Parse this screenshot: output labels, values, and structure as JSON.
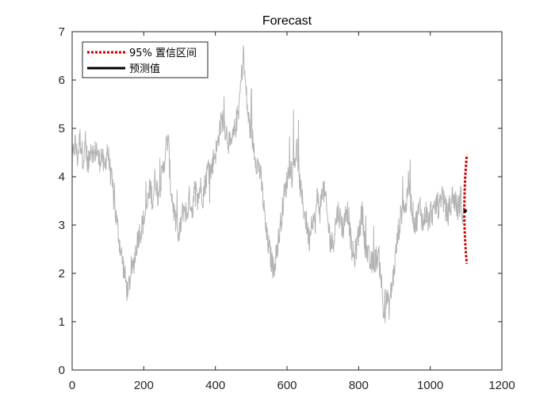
{
  "chart_data": {
    "type": "line",
    "title": "Forecast",
    "xlabel": "",
    "ylabel": "",
    "xlim": [
      0,
      1200
    ],
    "ylim": [
      0,
      7
    ],
    "xticks": [
      0,
      200,
      400,
      600,
      800,
      1000,
      1200
    ],
    "yticks": [
      0,
      1,
      2,
      3,
      4,
      5,
      6,
      7
    ],
    "grid": false,
    "legend": {
      "placement": "top-left",
      "entries": [
        {
          "label": "95% 置信区间",
          "color": "#cc0000",
          "style": "dotted"
        },
        {
          "label": "预测值",
          "color": "#000000",
          "style": "solid"
        }
      ]
    },
    "series": [
      {
        "role": "observed",
        "color": "#b3b3b3",
        "points": [
          [
            0,
            4.3
          ],
          [
            8,
            4.7
          ],
          [
            15,
            4.4
          ],
          [
            22,
            4.8
          ],
          [
            30,
            4.4
          ],
          [
            38,
            4.6
          ],
          [
            45,
            4.2
          ],
          [
            52,
            4.7
          ],
          [
            60,
            4.4
          ],
          [
            68,
            4.6
          ],
          [
            75,
            4.3
          ],
          [
            82,
            4.5
          ],
          [
            90,
            4.1
          ],
          [
            98,
            4.6
          ],
          [
            105,
            4.2
          ],
          [
            112,
            3.8
          ],
          [
            120,
            3.3
          ],
          [
            128,
            2.9
          ],
          [
            135,
            2.5
          ],
          [
            142,
            2.2
          ],
          [
            150,
            1.8
          ],
          [
            155,
            1.6
          ],
          [
            162,
            1.9
          ],
          [
            170,
            2.1
          ],
          [
            178,
            2.5
          ],
          [
            185,
            2.8
          ],
          [
            192,
            2.9
          ],
          [
            200,
            3.1
          ],
          [
            210,
            3.4
          ],
          [
            218,
            3.8
          ],
          [
            225,
            3.5
          ],
          [
            232,
            4.0
          ],
          [
            240,
            3.6
          ],
          [
            248,
            3.9
          ],
          [
            255,
            4.2
          ],
          [
            262,
            4.6
          ],
          [
            268,
            4.8
          ],
          [
            275,
            3.8
          ],
          [
            282,
            3.4
          ],
          [
            290,
            3.0
          ],
          [
            298,
            2.7
          ],
          [
            305,
            3.1
          ],
          [
            312,
            3.4
          ],
          [
            320,
            3.2
          ],
          [
            328,
            3.6
          ],
          [
            335,
            3.3
          ],
          [
            342,
            3.7
          ],
          [
            350,
            3.5
          ],
          [
            358,
            3.8
          ],
          [
            365,
            3.6
          ],
          [
            372,
            3.9
          ],
          [
            380,
            4.2
          ],
          [
            388,
            4.1
          ],
          [
            395,
            4.4
          ],
          [
            405,
            4.6
          ],
          [
            412,
            5.0
          ],
          [
            420,
            5.2
          ],
          [
            428,
            5.0
          ],
          [
            435,
            4.8
          ],
          [
            442,
            4.6
          ],
          [
            450,
            4.8
          ],
          [
            458,
            5.1
          ],
          [
            465,
            5.4
          ],
          [
            472,
            6.0
          ],
          [
            478,
            6.5
          ],
          [
            485,
            5.8
          ],
          [
            492,
            5.2
          ],
          [
            500,
            4.9
          ],
          [
            508,
            4.6
          ],
          [
            515,
            4.3
          ],
          [
            522,
            4.2
          ],
          [
            528,
            3.9
          ],
          [
            535,
            3.4
          ],
          [
            542,
            2.8
          ],
          [
            548,
            2.6
          ],
          [
            555,
            2.3
          ],
          [
            562,
            2.1
          ],
          [
            570,
            2.4
          ],
          [
            578,
            2.8
          ],
          [
            585,
            3.2
          ],
          [
            592,
            3.6
          ],
          [
            600,
            3.9
          ],
          [
            608,
            4.3
          ],
          [
            615,
            4.0
          ],
          [
            622,
            4.4
          ],
          [
            628,
            4.6
          ],
          [
            634,
            4.0
          ],
          [
            640,
            3.6
          ],
          [
            648,
            3.3
          ],
          [
            655,
            3.0
          ],
          [
            662,
            2.7
          ],
          [
            670,
            3.2
          ],
          [
            678,
            3.0
          ],
          [
            685,
            3.6
          ],
          [
            692,
            3.3
          ],
          [
            700,
            3.8
          ],
          [
            708,
            3.5
          ],
          [
            715,
            3.0
          ],
          [
            722,
            2.7
          ],
          [
            728,
            2.6
          ],
          [
            735,
            3.0
          ],
          [
            742,
            3.3
          ],
          [
            750,
            3.1
          ],
          [
            758,
            2.9
          ],
          [
            765,
            3.4
          ],
          [
            772,
            3.2
          ],
          [
            780,
            2.5
          ],
          [
            788,
            2.3
          ],
          [
            795,
            2.6
          ],
          [
            802,
            2.9
          ],
          [
            810,
            3.3
          ],
          [
            818,
            2.6
          ],
          [
            825,
            2.4
          ],
          [
            832,
            2.2
          ],
          [
            840,
            2.2
          ],
          [
            848,
            2.3
          ],
          [
            855,
            2.4
          ],
          [
            862,
            2.0
          ],
          [
            868,
            1.3
          ],
          [
            872,
            1.1
          ],
          [
            878,
            1.5
          ],
          [
            885,
            1.3
          ],
          [
            892,
            1.7
          ],
          [
            898,
            2.0
          ],
          [
            905,
            2.5
          ],
          [
            912,
            2.9
          ],
          [
            918,
            3.2
          ],
          [
            925,
            3.5
          ],
          [
            932,
            3.3
          ],
          [
            938,
            3.9
          ],
          [
            944,
            3.6
          ],
          [
            950,
            3.3
          ],
          [
            958,
            3.0
          ],
          [
            965,
            3.2
          ],
          [
            972,
            3.4
          ],
          [
            980,
            3.0
          ],
          [
            988,
            3.3
          ],
          [
            995,
            3.0
          ],
          [
            1002,
            3.3
          ],
          [
            1010,
            3.2
          ],
          [
            1018,
            3.5
          ],
          [
            1025,
            3.3
          ],
          [
            1032,
            3.7
          ],
          [
            1040,
            3.4
          ],
          [
            1048,
            3.2
          ],
          [
            1055,
            3.4
          ],
          [
            1062,
            3.6
          ],
          [
            1070,
            3.5
          ],
          [
            1078,
            3.3
          ],
          [
            1085,
            3.6
          ],
          [
            1090,
            3.2
          ],
          [
            1095,
            3.25
          ]
        ]
      },
      {
        "name": "95% 置信区间",
        "role": "upper-bound",
        "color": "#cc0000",
        "points": [
          [
            1095,
            3.3
          ],
          [
            1096,
            3.7
          ],
          [
            1097,
            3.9
          ],
          [
            1098,
            4.05
          ],
          [
            1099,
            4.15
          ],
          [
            1100,
            4.25
          ],
          [
            1101,
            4.35
          ],
          [
            1102,
            4.45
          ]
        ]
      },
      {
        "name": "95% 置信区间",
        "role": "lower-bound",
        "color": "#cc0000",
        "points": [
          [
            1095,
            3.2
          ],
          [
            1096,
            2.9
          ],
          [
            1097,
            2.75
          ],
          [
            1098,
            2.6
          ],
          [
            1099,
            2.48
          ],
          [
            1100,
            2.38
          ],
          [
            1101,
            2.28
          ],
          [
            1102,
            2.2
          ]
        ]
      },
      {
        "name": "预测值",
        "role": "forecast",
        "color": "#000000",
        "points": [
          [
            1095,
            3.25
          ],
          [
            1096,
            3.27
          ],
          [
            1097,
            3.28
          ],
          [
            1098,
            3.29
          ],
          [
            1099,
            3.29
          ],
          [
            1100,
            3.3
          ],
          [
            1101,
            3.3
          ],
          [
            1102,
            3.3
          ]
        ]
      }
    ]
  }
}
